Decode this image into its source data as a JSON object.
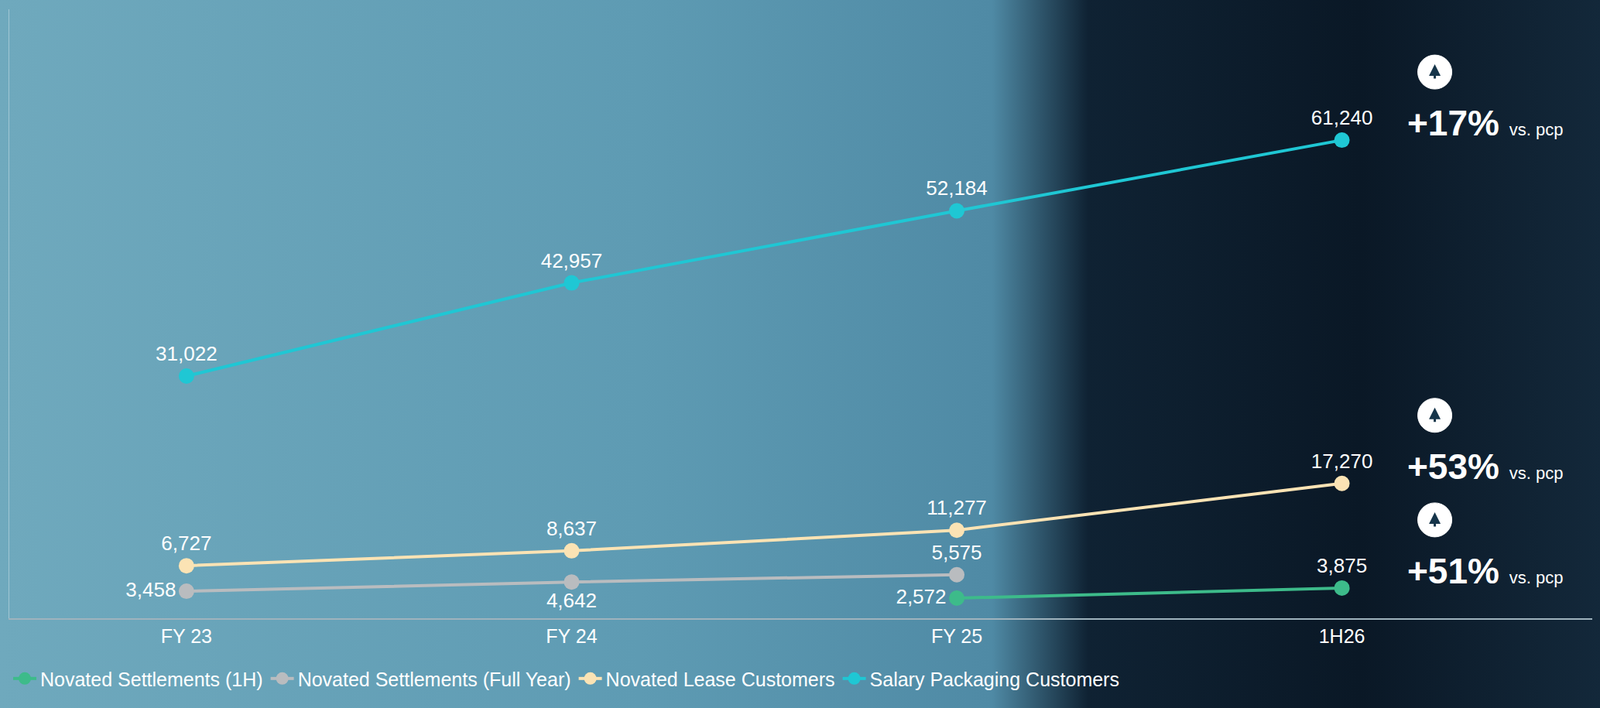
{
  "chart_data": {
    "type": "line",
    "categories": [
      "FY 23",
      "FY 24",
      "FY 25",
      "1H26"
    ],
    "series": [
      {
        "name": "Novated Settlements (1H)",
        "color": "#3dbb8a",
        "marker": "circle",
        "values": [
          null,
          null,
          2572,
          3875
        ],
        "value_labels": [
          null,
          null,
          "2,572",
          "3,875"
        ]
      },
      {
        "name": "Novated Settlements (Full Year)",
        "color": "#b9bcbf",
        "marker": "circle",
        "values": [
          3458,
          4642,
          5575,
          null
        ],
        "value_labels": [
          "3,458",
          "4,642",
          "5,575",
          null
        ]
      },
      {
        "name": "Novated Lease Customers",
        "color": "#fbe3b4",
        "marker": "circle",
        "values": [
          6727,
          8637,
          11277,
          17270
        ],
        "value_labels": [
          "6,727",
          "8,637",
          "11,277",
          "17,270"
        ]
      },
      {
        "name": "Salary Packaging Customers",
        "color": "#1fc7d4",
        "marker": "circle",
        "values": [
          31022,
          42957,
          52184,
          61240
        ],
        "value_labels": [
          "31,022",
          "42,957",
          "52,184",
          "61,240"
        ]
      }
    ],
    "annotations": [
      {
        "text": "+17%",
        "subtext": "vs. pcp",
        "series": "Salary Packaging Customers"
      },
      {
        "text": "+53%",
        "subtext": "vs. pcp",
        "series": "Novated Lease Customers"
      },
      {
        "text": "+51%",
        "subtext": "vs. pcp",
        "series": "Novated Settlements (1H)"
      }
    ],
    "ylim": [
      0,
      78000
    ],
    "yticks": [
      0
    ],
    "grid": false,
    "tick_labels": "x",
    "data_labels": true,
    "legend": "bottom"
  }
}
